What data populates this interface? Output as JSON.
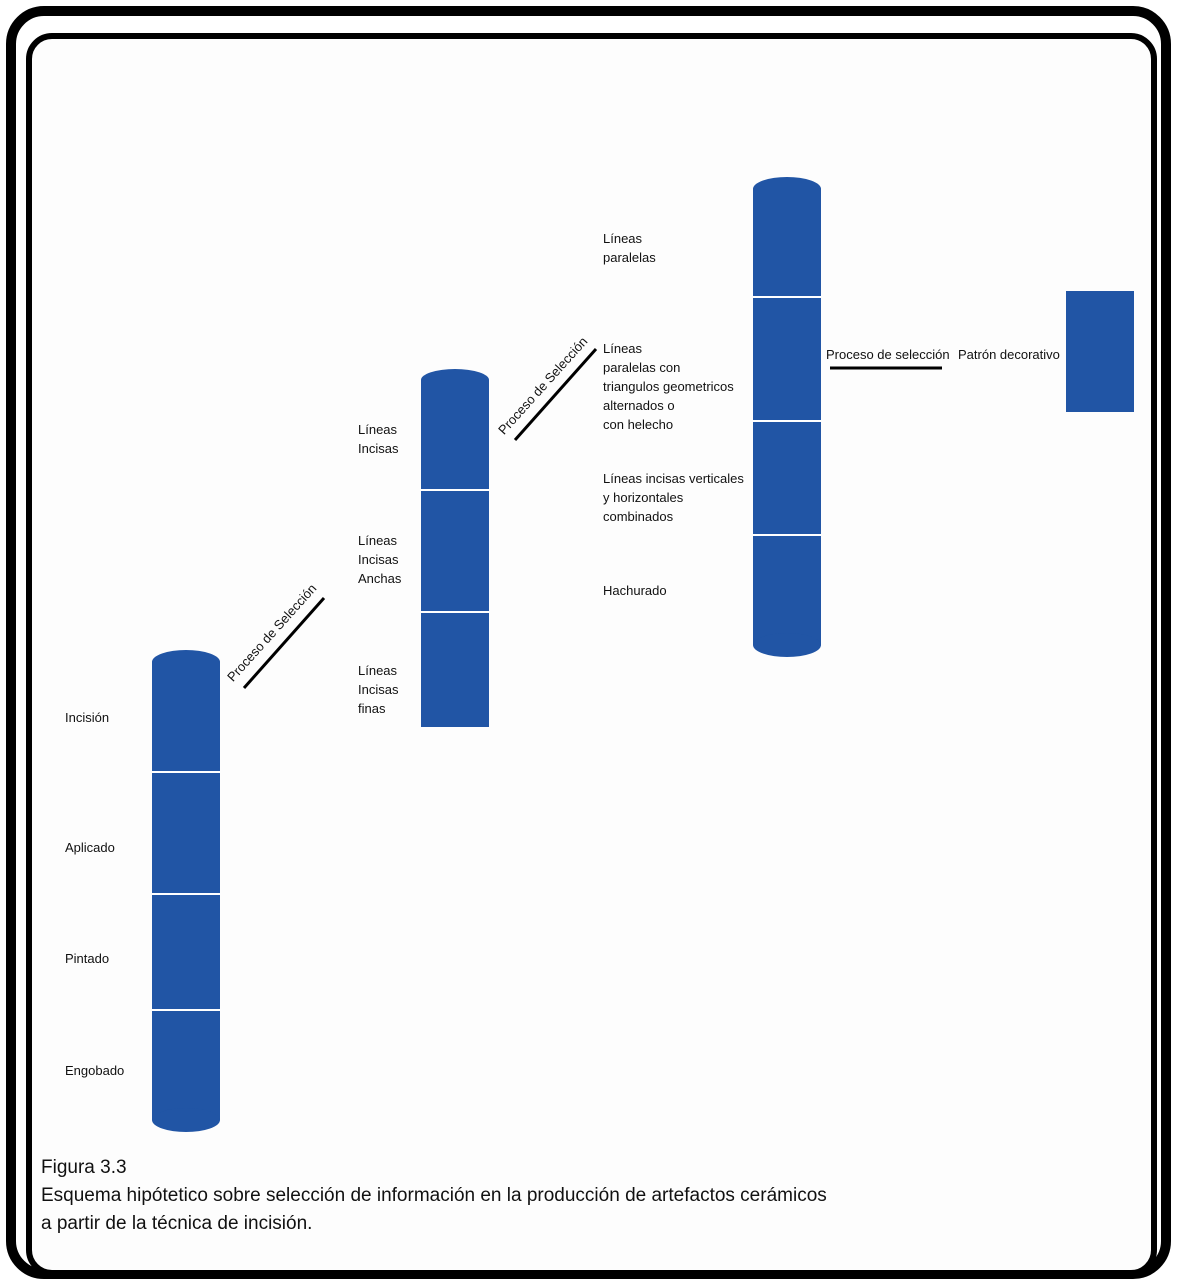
{
  "column1": {
    "items": [
      "Incisión",
      "Aplicado",
      "Pintado",
      "Engobado"
    ]
  },
  "column2": {
    "items": [
      "Líneas\nIncisas",
      "Líneas\nIncisas\nAnchas",
      "Líneas\nIncisas\nfinas"
    ]
  },
  "column3": {
    "items": [
      "Líneas\nparalelas",
      "Líneas\nparalelas con\ntriangulos geometricos\nalternados o\ncon helecho",
      "Líneas incisas verticales\ny horizontales\ncombinados",
      "Hachurado"
    ]
  },
  "connectors": {
    "selection_1": "Proceso de Selección",
    "selection_2": "Proceso de Selección",
    "selection_3": "Proceso de selección"
  },
  "result": {
    "label": "Patrón decorativo"
  },
  "caption": {
    "figure": "Figura 3.3",
    "line1": "Esquema hipótetico sobre selección de información en la producción de artefactos cerámicos",
    "line2": "a partir de la técnica de incisión."
  },
  "colors": {
    "block": "#2155a5",
    "divider": "#ffffff",
    "frame": "#000000"
  }
}
